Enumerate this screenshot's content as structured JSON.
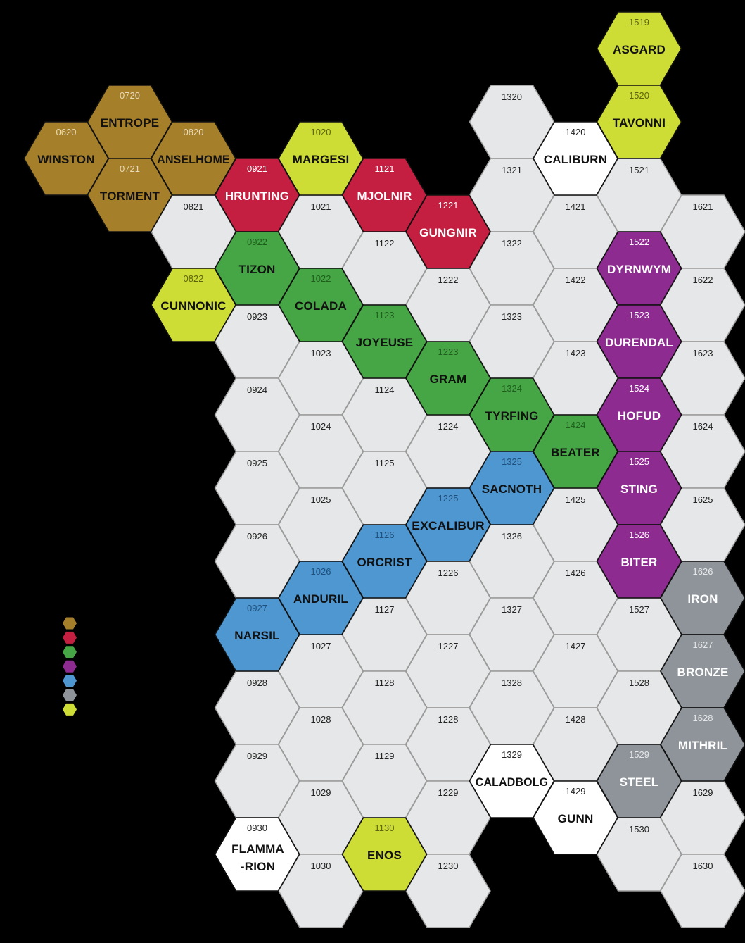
{
  "palette": {
    "background": "#000000",
    "grid": "#e6e7e8",
    "brown": "#a67f2b",
    "red": "#c41f40",
    "green": "#46a645",
    "purple": "#8e2b90",
    "blue": "#4e97d1",
    "gray": "#8e949a",
    "lime": "#cedd35"
  },
  "legend": [
    "brown",
    "red",
    "green",
    "purple",
    "blue",
    "gray",
    "lime"
  ],
  "hexes": [
    {
      "code": "0620",
      "name": "WINSTON",
      "color": "brown"
    },
    {
      "code": "0720",
      "name": "ENTROPE",
      "color": "brown"
    },
    {
      "code": "0721",
      "name": "TORMENT",
      "color": "brown"
    },
    {
      "code": "0820",
      "name": "ANSELHOME",
      "color": "brown"
    },
    {
      "code": "0821",
      "name": "",
      "color": "grid"
    },
    {
      "code": "0822",
      "name": "CUNNONIC",
      "color": "lime"
    },
    {
      "code": "0921",
      "name": "HRUNTING",
      "color": "red"
    },
    {
      "code": "0922",
      "name": "TIZON",
      "color": "green"
    },
    {
      "code": "0923",
      "name": "",
      "color": "grid"
    },
    {
      "code": "0924",
      "name": "",
      "color": "grid"
    },
    {
      "code": "0925",
      "name": "",
      "color": "grid"
    },
    {
      "code": "0926",
      "name": "",
      "color": "grid"
    },
    {
      "code": "0927",
      "name": "NARSIL",
      "color": "blue"
    },
    {
      "code": "0928",
      "name": "",
      "color": "grid"
    },
    {
      "code": "0929",
      "name": "",
      "color": "grid"
    },
    {
      "code": "0930",
      "name": "FLAMMA-RION",
      "color": "white"
    },
    {
      "code": "1020",
      "name": "MARGESI",
      "color": "lime"
    },
    {
      "code": "1021",
      "name": "",
      "color": "grid"
    },
    {
      "code": "1022",
      "name": "COLADA",
      "color": "green"
    },
    {
      "code": "1023",
      "name": "",
      "color": "grid"
    },
    {
      "code": "1024",
      "name": "",
      "color": "grid"
    },
    {
      "code": "1025",
      "name": "",
      "color": "grid"
    },
    {
      "code": "1026",
      "name": "ANDURIL",
      "color": "blue"
    },
    {
      "code": "1027",
      "name": "",
      "color": "grid"
    },
    {
      "code": "1028",
      "name": "",
      "color": "grid"
    },
    {
      "code": "1029",
      "name": "",
      "color": "grid"
    },
    {
      "code": "1030",
      "name": "",
      "color": "grid"
    },
    {
      "code": "1121",
      "name": "MJOLNIR",
      "color": "red"
    },
    {
      "code": "1122",
      "name": "",
      "color": "grid"
    },
    {
      "code": "1123",
      "name": "JOYEUSE",
      "color": "green"
    },
    {
      "code": "1124",
      "name": "",
      "color": "grid"
    },
    {
      "code": "1125",
      "name": "",
      "color": "grid"
    },
    {
      "code": "1126",
      "name": "ORCRIST",
      "color": "blue"
    },
    {
      "code": "1127",
      "name": "",
      "color": "grid"
    },
    {
      "code": "1128",
      "name": "",
      "color": "grid"
    },
    {
      "code": "1129",
      "name": "",
      "color": "grid"
    },
    {
      "code": "1130",
      "name": "ENOS",
      "color": "lime"
    },
    {
      "code": "1221",
      "name": "GUNGNIR",
      "color": "red"
    },
    {
      "code": "1222",
      "name": "",
      "color": "grid"
    },
    {
      "code": "1223",
      "name": "GRAM",
      "color": "green"
    },
    {
      "code": "1224",
      "name": "",
      "color": "grid"
    },
    {
      "code": "1225",
      "name": "EXCALIBUR",
      "color": "blue"
    },
    {
      "code": "1226",
      "name": "",
      "color": "grid"
    },
    {
      "code": "1227",
      "name": "",
      "color": "grid"
    },
    {
      "code": "1228",
      "name": "",
      "color": "grid"
    },
    {
      "code": "1229",
      "name": "",
      "color": "grid"
    },
    {
      "code": "1230",
      "name": "",
      "color": "grid"
    },
    {
      "code": "1321",
      "name": "",
      "color": "grid"
    },
    {
      "code": "1322",
      "name": "",
      "color": "grid"
    },
    {
      "code": "1323",
      "name": "",
      "color": "grid"
    },
    {
      "code": "1324",
      "name": "TYRFING",
      "color": "green"
    },
    {
      "code": "1325",
      "name": "SACNOTH",
      "color": "blue"
    },
    {
      "code": "1326",
      "name": "",
      "color": "grid"
    },
    {
      "code": "1327",
      "name": "",
      "color": "grid"
    },
    {
      "code": "1328",
      "name": "",
      "color": "grid"
    },
    {
      "code": "1329",
      "name": "CALADBOLG",
      "color": "white"
    },
    {
      "code": "1320",
      "name": "",
      "color": "grid"
    },
    {
      "code": "1421",
      "name": "",
      "color": "grid"
    },
    {
      "code": "1422",
      "name": "",
      "color": "grid"
    },
    {
      "code": "1423",
      "name": "",
      "color": "grid"
    },
    {
      "code": "1424",
      "name": "BEATER",
      "color": "green"
    },
    {
      "code": "1425",
      "name": "",
      "color": "grid"
    },
    {
      "code": "1426",
      "name": "",
      "color": "grid"
    },
    {
      "code": "1427",
      "name": "",
      "color": "grid"
    },
    {
      "code": "1428",
      "name": "",
      "color": "grid"
    },
    {
      "code": "1429",
      "name": "GUNN",
      "color": "white"
    },
    {
      "code": "1420",
      "name": "CALIBURN",
      "color": "white"
    },
    {
      "code": "1519",
      "name": "ASGARD",
      "color": "lime"
    },
    {
      "code": "1520",
      "name": "TAVONNI",
      "color": "lime"
    },
    {
      "code": "1521",
      "name": "",
      "color": "grid"
    },
    {
      "code": "1522",
      "name": "DYRNWYM",
      "color": "purple"
    },
    {
      "code": "1523",
      "name": "DURENDAL",
      "color": "purple"
    },
    {
      "code": "1524",
      "name": "HOFUD",
      "color": "purple"
    },
    {
      "code": "1525",
      "name": "STING",
      "color": "purple"
    },
    {
      "code": "1526",
      "name": "BITER",
      "color": "purple"
    },
    {
      "code": "1527",
      "name": "",
      "color": "grid"
    },
    {
      "code": "1528",
      "name": "",
      "color": "grid"
    },
    {
      "code": "1529",
      "name": "STEEL",
      "color": "gray"
    },
    {
      "code": "1530",
      "name": "",
      "color": "grid"
    },
    {
      "code": "1621",
      "name": "",
      "color": "grid"
    },
    {
      "code": "1622",
      "name": "",
      "color": "grid"
    },
    {
      "code": "1623",
      "name": "",
      "color": "grid"
    },
    {
      "code": "1624",
      "name": "",
      "color": "grid"
    },
    {
      "code": "1625",
      "name": "",
      "color": "grid"
    },
    {
      "code": "1626",
      "name": "IRON",
      "color": "gray"
    },
    {
      "code": "1627",
      "name": "BRONZE",
      "color": "gray"
    },
    {
      "code": "1628",
      "name": "MITHRIL",
      "color": "gray"
    },
    {
      "code": "1629",
      "name": "",
      "color": "grid"
    },
    {
      "code": "1630",
      "name": "",
      "color": "grid"
    }
  ]
}
